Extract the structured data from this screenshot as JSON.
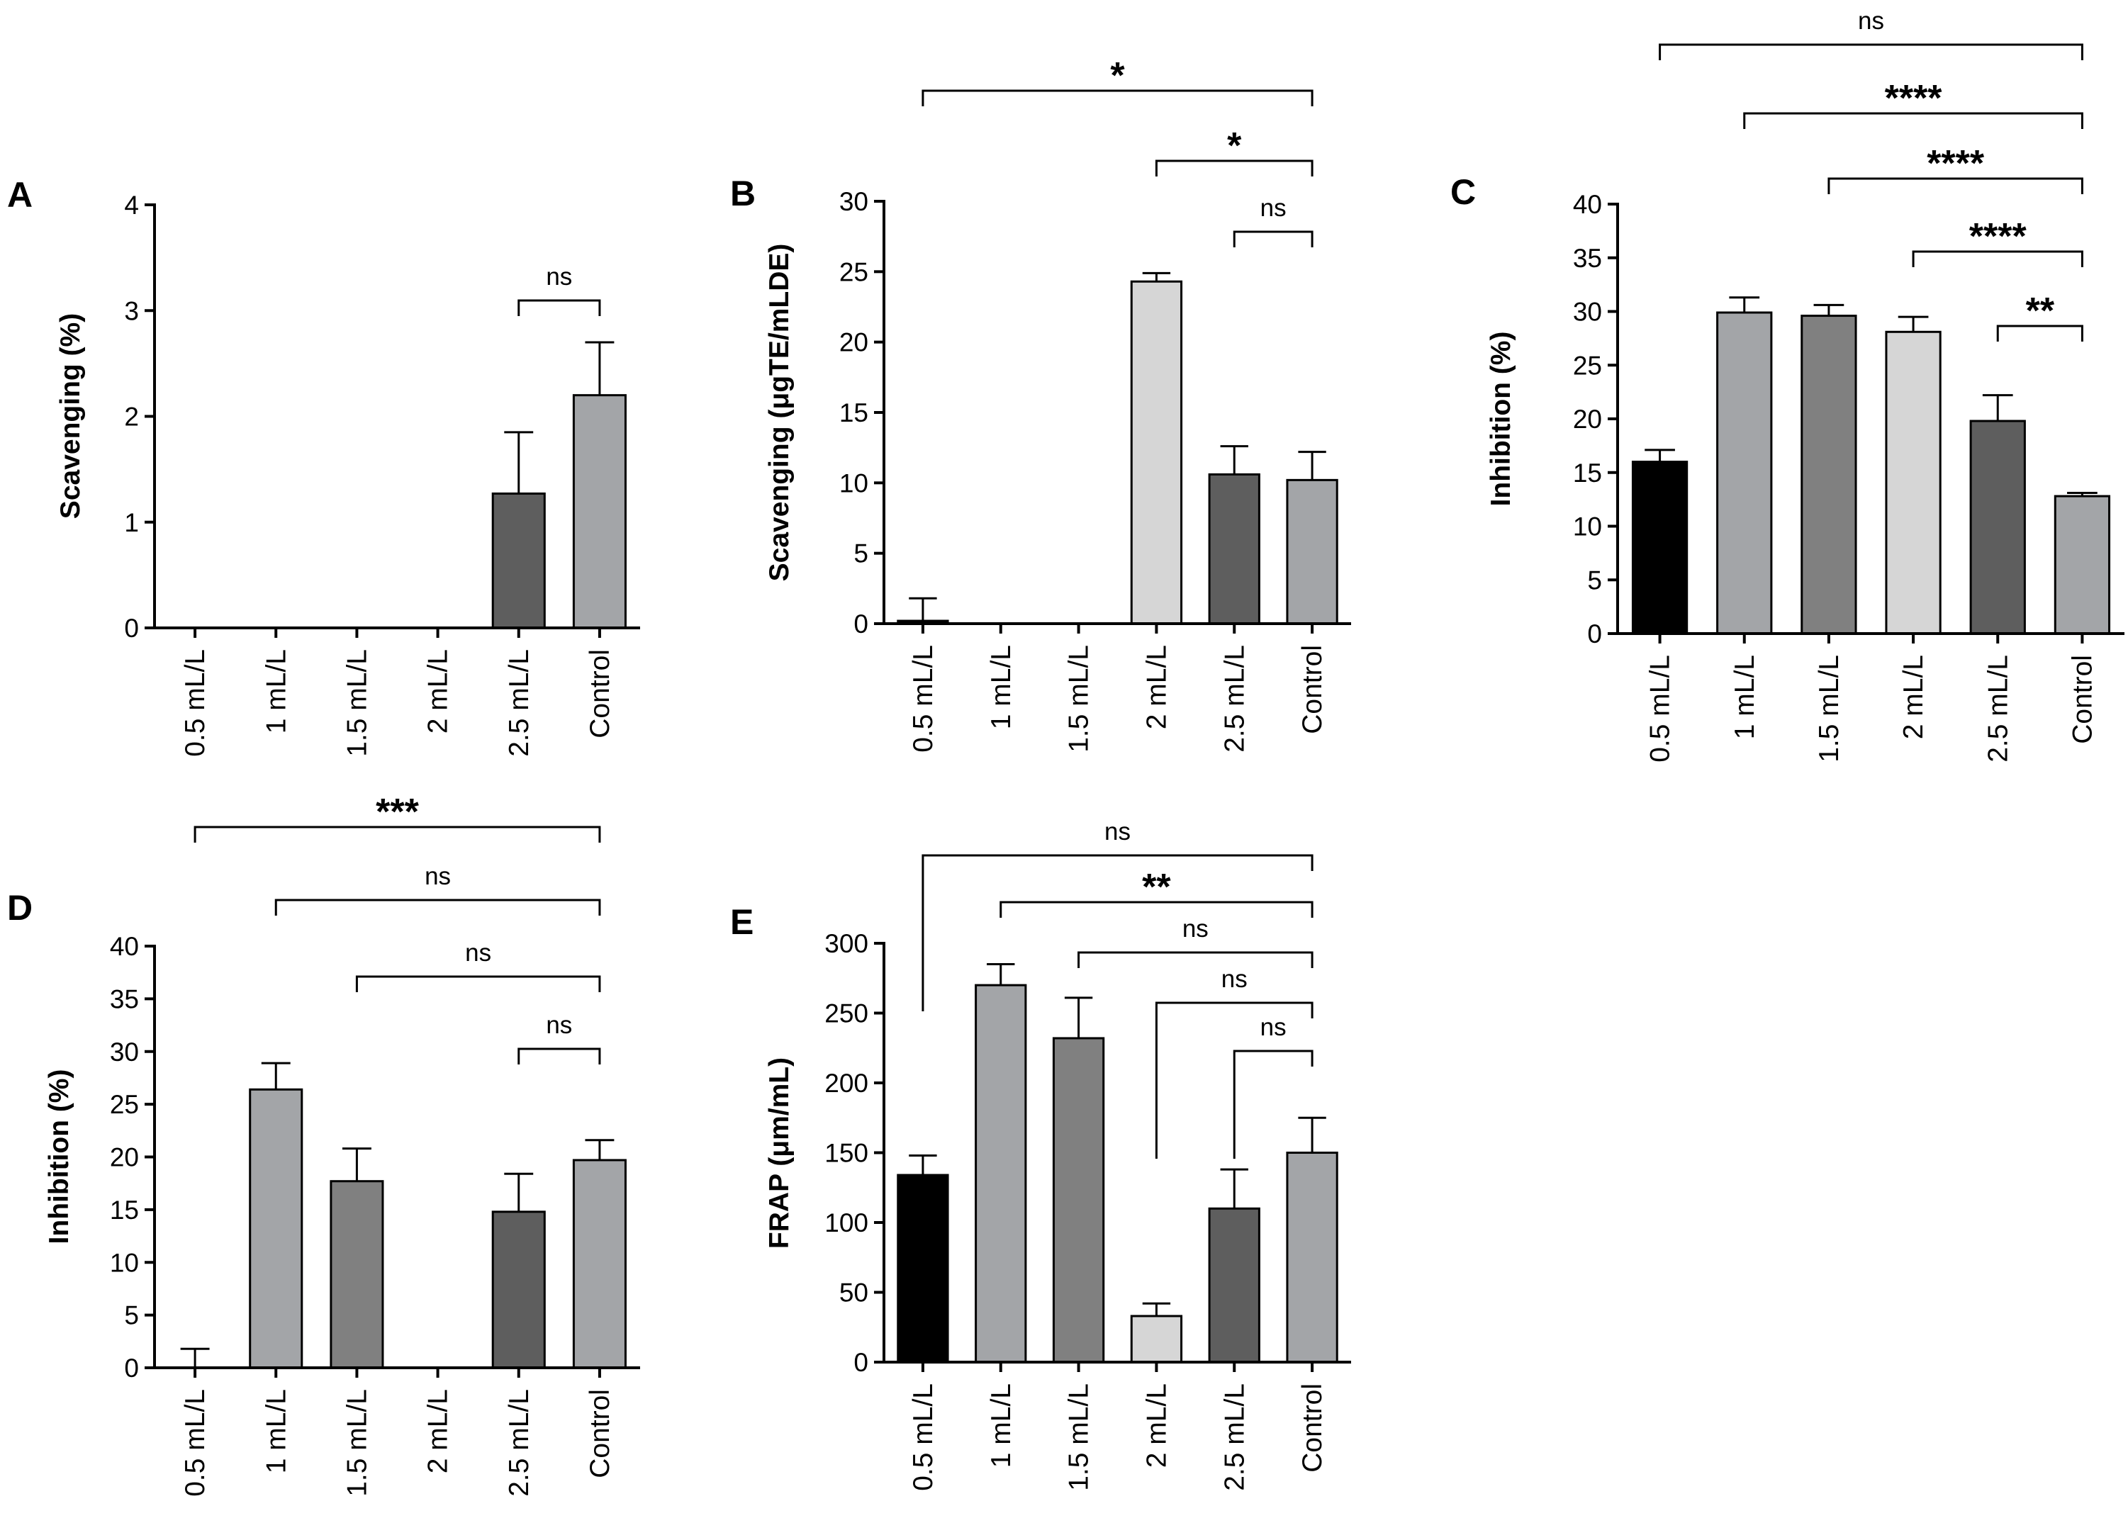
{
  "chart_data": [
    {
      "type": "bar",
      "panel_label": "A",
      "categories": [
        "0.5 mL/L",
        "1 mL/L",
        "1.5 mL/L",
        "2 mL/L",
        "2.5 mL/L",
        "Control"
      ],
      "values": [
        0,
        0,
        0,
        0,
        1.27,
        2.2
      ],
      "error": [
        0,
        0,
        0,
        0,
        0.58,
        0.5
      ],
      "bar_colors": [
        "#000000",
        "#a3a5a8",
        "#808080",
        "#d6d6d6",
        "#5e5e5e",
        "#a3a5a8"
      ],
      "ylabel": "Scavenging (%)",
      "ylim": [
        0,
        4
      ],
      "yticks": [
        0,
        1,
        2,
        3,
        4
      ],
      "comparisons": [
        {
          "from": 4,
          "to": 5,
          "label": "ns"
        }
      ]
    },
    {
      "type": "bar",
      "panel_label": "B",
      "categories": [
        "0.5 mL/L",
        "1 mL/L",
        "1.5 mL/L",
        "2 mL/L",
        "2.5 mL/L",
        "Control"
      ],
      "values": [
        0.2,
        0,
        0,
        24.3,
        10.6,
        10.2
      ],
      "error": [
        1.6,
        0,
        0,
        0.6,
        2.0,
        2.0
      ],
      "bar_colors": [
        "#000000",
        "#a3a5a8",
        "#808080",
        "#d6d6d6",
        "#5e5e5e",
        "#a3a5a8"
      ],
      "ylabel": "Scavenging (μgTE/mLDE)",
      "ylim": [
        0,
        30
      ],
      "yticks": [
        0,
        5,
        10,
        15,
        20,
        25,
        30
      ],
      "comparisons": [
        {
          "from": 4,
          "to": 5,
          "label": "ns"
        },
        {
          "from": 3,
          "to": 5,
          "label": "*"
        },
        {
          "from": 0,
          "to": 5,
          "label": "*"
        }
      ]
    },
    {
      "type": "bar",
      "panel_label": "C",
      "categories": [
        "0.5 mL/L",
        "1 mL/L",
        "1.5 mL/L",
        "2 mL/L",
        "2.5 mL/L",
        "Control"
      ],
      "values": [
        16.0,
        29.9,
        29.6,
        28.1,
        19.8,
        12.8
      ],
      "error": [
        1.1,
        1.4,
        1.0,
        1.4,
        2.4,
        0.3
      ],
      "bar_colors": [
        "#000000",
        "#a3a5a8",
        "#808080",
        "#d6d6d6",
        "#5e5e5e",
        "#a3a5a8"
      ],
      "ylabel": "Inhibition (%)",
      "ylim": [
        0,
        40
      ],
      "yticks": [
        0,
        5,
        10,
        15,
        20,
        25,
        30,
        35,
        40
      ],
      "comparisons": [
        {
          "from": 4,
          "to": 5,
          "label": "**"
        },
        {
          "from": 3,
          "to": 5,
          "label": "****"
        },
        {
          "from": 2,
          "to": 5,
          "label": "****"
        },
        {
          "from": 1,
          "to": 5,
          "label": "****"
        },
        {
          "from": 0,
          "to": 5,
          "label": "ns"
        }
      ]
    },
    {
      "type": "bar",
      "panel_label": "D",
      "categories": [
        "0.5 mL/L",
        "1 mL/L",
        "1.5 mL/L",
        "2 mL/L",
        "2.5 mL/L",
        "Control"
      ],
      "values": [
        0,
        26.4,
        17.7,
        0,
        14.8,
        19.7
      ],
      "error": [
        1.8,
        2.5,
        3.1,
        0,
        3.6,
        1.9
      ],
      "bar_colors": [
        "#000000",
        "#a3a5a8",
        "#808080",
        "#d6d6d6",
        "#5e5e5e",
        "#a3a5a8"
      ],
      "ylabel": "Inhibition (%)",
      "ylim": [
        0,
        40
      ],
      "yticks": [
        0,
        5,
        10,
        15,
        20,
        25,
        30,
        35,
        40
      ],
      "comparisons": [
        {
          "from": 4,
          "to": 5,
          "label": "ns"
        },
        {
          "from": 2,
          "to": 5,
          "label": "ns"
        },
        {
          "from": 1,
          "to": 5,
          "label": "ns"
        },
        {
          "from": 0,
          "to": 5,
          "label": "***"
        }
      ]
    },
    {
      "type": "bar",
      "panel_label": "E",
      "categories": [
        "0.5 mL/L",
        "1 mL/L",
        "1.5 mL/L",
        "2 mL/L",
        "2.5 mL/L",
        "Control"
      ],
      "values": [
        134,
        270,
        232,
        33,
        110,
        150
      ],
      "error": [
        14,
        15,
        29,
        9,
        28,
        25
      ],
      "bar_colors": [
        "#000000",
        "#a3a5a8",
        "#808080",
        "#d6d6d6",
        "#5e5e5e",
        "#a3a5a8"
      ],
      "ylabel": "FRAP (μm/mL)",
      "ylim": [
        0,
        300
      ],
      "yticks": [
        0,
        50,
        100,
        150,
        200,
        250,
        300
      ],
      "comparisons": [
        {
          "from": 4,
          "to": 5,
          "label": "ns"
        },
        {
          "from": 3,
          "to": 5,
          "label": "ns"
        },
        {
          "from": 2,
          "to": 5,
          "label": "ns"
        },
        {
          "from": 1,
          "to": 5,
          "label": "**"
        },
        {
          "from": 0,
          "to": 5,
          "label": "ns"
        }
      ]
    }
  ]
}
